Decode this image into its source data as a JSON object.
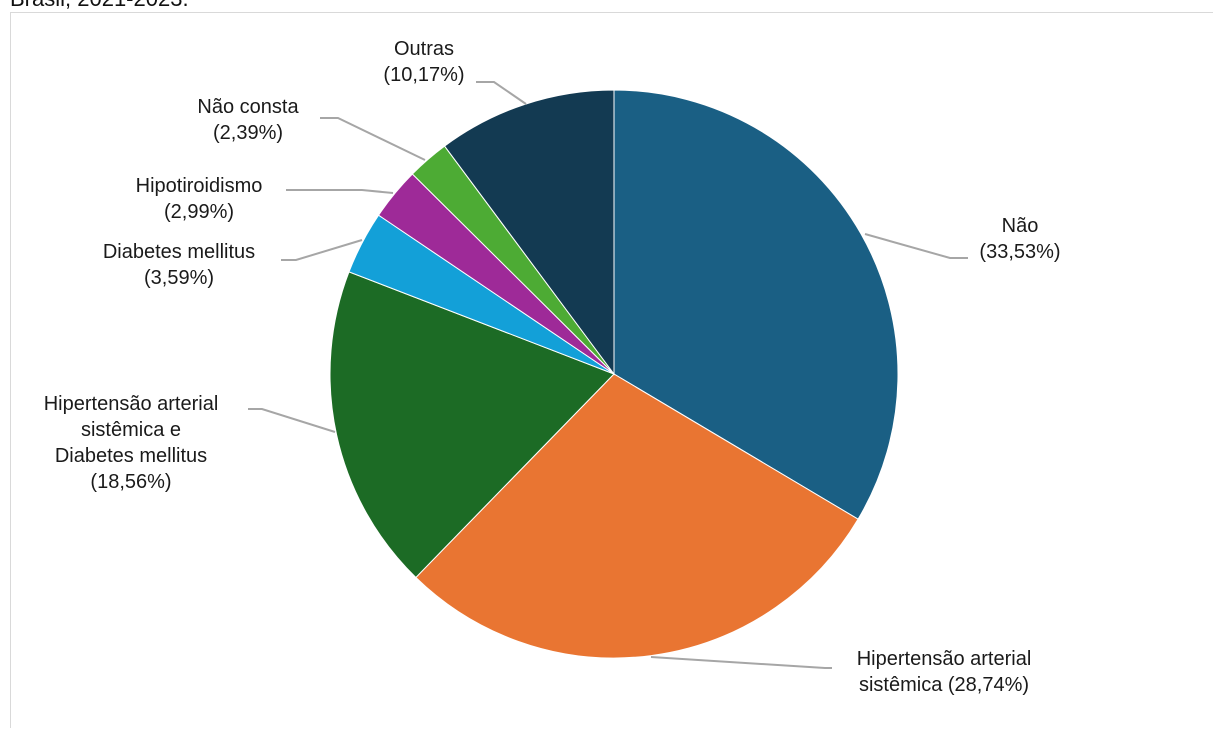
{
  "caption": "Brasil, 2021-2023.",
  "chart_data": {
    "type": "pie",
    "start_angle_deg": 0,
    "direction": "clockwise",
    "slices": [
      {
        "label_lines": [
          "Não",
          "(33,53%)"
        ],
        "value": 33.53,
        "color": "#1a5f84"
      },
      {
        "label_lines": [
          "Hipertensão arterial",
          "sistêmica (28,74%)"
        ],
        "value": 28.74,
        "color": "#e97532"
      },
      {
        "label_lines": [
          "Hipertensão arterial",
          "sistêmica e",
          "Diabetes mellitus",
          "(18,56%)"
        ],
        "value": 18.56,
        "color": "#1c6b25"
      },
      {
        "label_lines": [
          "Diabetes mellitus",
          "(3,59%)"
        ],
        "value": 3.59,
        "color": "#13a0d8"
      },
      {
        "label_lines": [
          "Hipotiroidismo",
          "(2,99%)"
        ],
        "value": 2.99,
        "color": "#9e2a98"
      },
      {
        "label_lines": [
          "Não consta",
          "(2,39%)"
        ],
        "value": 2.39,
        "color": "#4dab34"
      },
      {
        "label_lines": [
          "Outras",
          "(10,17%)"
        ],
        "value": 10.17,
        "color": "#133a52"
      }
    ]
  }
}
